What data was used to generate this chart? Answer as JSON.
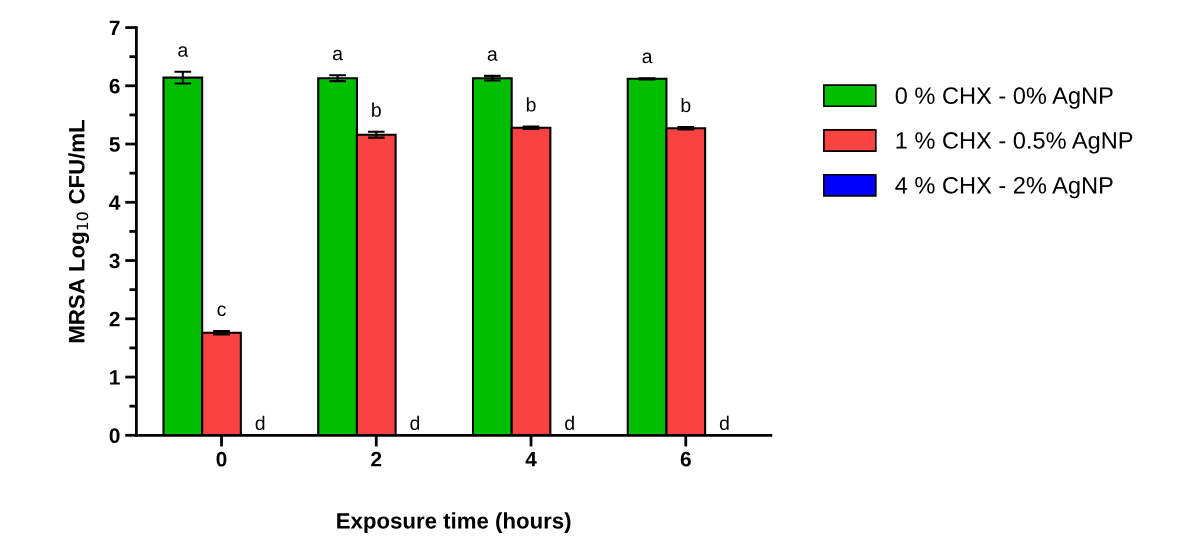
{
  "chart_data": {
    "type": "bar",
    "xlabel": "Exposure time (hours)",
    "ylabel": "MRSA Log$_{10}$ CFU/mL",
    "categories": [
      "0",
      "2",
      "4",
      "6"
    ],
    "series": [
      {
        "name": "0 % CHX - 0% AgNP",
        "color": "#00bf00",
        "values": [
          6.14,
          6.13,
          6.13,
          6.12
        ],
        "errors": [
          0.1,
          0.05,
          0.04,
          0.01
        ],
        "value_labels": [
          "a",
          "a",
          "a",
          "a"
        ]
      },
      {
        "name": "1 % CHX - 0.5% AgNP",
        "color": "#f94242",
        "values": [
          1.76,
          5.16,
          5.28,
          5.27
        ],
        "errors": [
          0.03,
          0.05,
          0.02,
          0.02
        ],
        "value_labels": [
          "c",
          "b",
          "b",
          "b"
        ]
      },
      {
        "name": "4 % CHX - 2% AgNP",
        "color": "#0000ff",
        "values": [
          0,
          0,
          0,
          0
        ],
        "value_labels": [
          "d",
          "d",
          "d",
          "d"
        ]
      }
    ],
    "ylim": [
      0,
      7
    ],
    "yticks": [
      0,
      {
        "value": 0.5,
        "label": null
      },
      1,
      {
        "value": 1.5,
        "label": null
      },
      2,
      {
        "value": 2.5,
        "label": null
      },
      3,
      {
        "value": 3.5,
        "label": null
      },
      4,
      {
        "value": 4.5,
        "label": null
      },
      5,
      {
        "value": 5.5,
        "label": null
      },
      6,
      {
        "value": 6.5,
        "label": null
      },
      7
    ],
    "legend": "right",
    "grid": false
  }
}
